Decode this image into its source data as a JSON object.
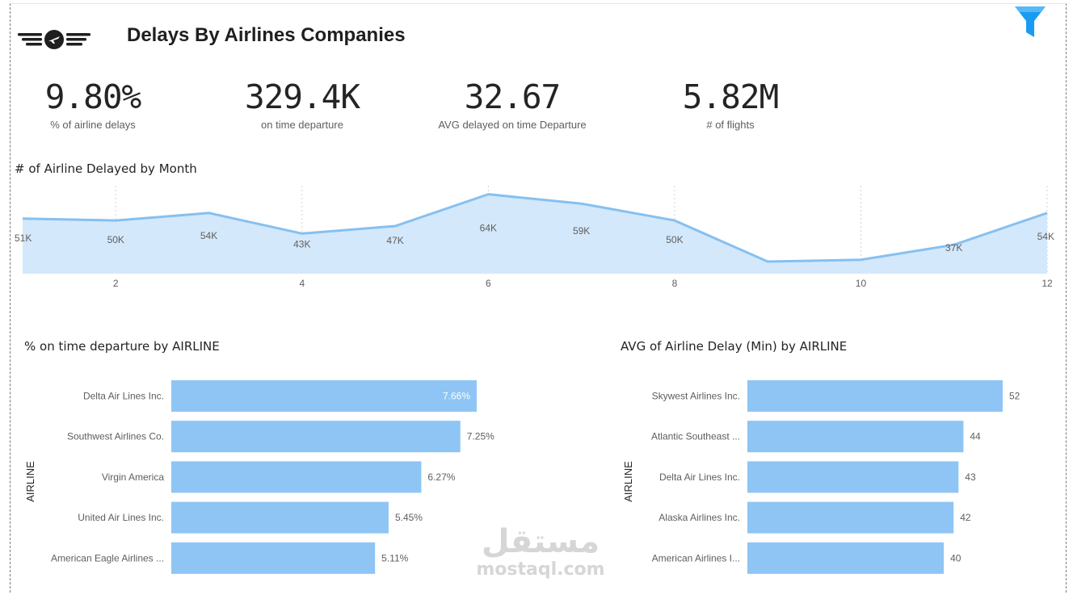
{
  "header": {
    "title": "Delays By Airlines Companies"
  },
  "kpis": [
    {
      "value": "9.80%",
      "label": "% of  airline delays"
    },
    {
      "value": "329.4K",
      "label": "on time departure"
    },
    {
      "value": "32.67",
      "label": "AVG delayed on time Departure"
    },
    {
      "value": "5.82M",
      "label": "# of flights"
    }
  ],
  "icons": {
    "logo": "airline-wings-logo-icon",
    "filter": "filter-funnel-icon"
  },
  "colors": {
    "bar": "#8ec5f4",
    "area_fill": "#d4e8fb",
    "area_line": "#86c0f0",
    "filter_accent": "#1a9bf2"
  },
  "watermark": {
    "arabic": "مستقل",
    "latin": "mostaql.com"
  },
  "chart_data": [
    {
      "type": "area",
      "title": "# of Airline Delayed by Month",
      "x": [
        1,
        2,
        3,
        4,
        5,
        6,
        7,
        8,
        9,
        10,
        11,
        12
      ],
      "y": [
        51000,
        50000,
        54000,
        43000,
        47000,
        64000,
        59000,
        50000,
        28000,
        29000,
        37000,
        54000
      ],
      "data_labels": [
        "51K",
        "50K",
        "54K",
        "43K",
        "47K",
        "64K",
        "59K",
        "50K",
        "",
        "",
        "37K",
        "54K"
      ],
      "x_ticks": [
        "2",
        "4",
        "6",
        "8",
        "10",
        "12"
      ],
      "ylim": [
        25000,
        66000
      ]
    },
    {
      "type": "bar",
      "orientation": "horizontal",
      "title": "% on time departure by AIRLINE",
      "ylabel": "AIRLINE",
      "categories": [
        "Delta Air Lines Inc.",
        "Southwest Airlines Co.",
        "Virgin America",
        "United Air Lines Inc.",
        "American Eagle Airlines ..."
      ],
      "values": [
        7.66,
        7.25,
        6.27,
        5.45,
        5.11
      ],
      "data_labels": [
        "7.66%",
        "7.25%",
        "6.27%",
        "5.45%",
        "5.11%"
      ],
      "xlim": [
        0,
        7.66
      ]
    },
    {
      "type": "bar",
      "orientation": "horizontal",
      "title": "AVG of Airline Delay (Min) by AIRLINE",
      "ylabel": "AIRLINE",
      "categories": [
        "Skywest Airlines Inc.",
        "Atlantic Southeast ...",
        "Delta Air Lines Inc.",
        "Alaska Airlines Inc.",
        "American Airlines I..."
      ],
      "values": [
        52,
        44,
        43,
        42,
        40
      ],
      "data_labels": [
        "52",
        "44",
        "43",
        "42",
        "40"
      ],
      "xlim": [
        0,
        52
      ]
    }
  ]
}
